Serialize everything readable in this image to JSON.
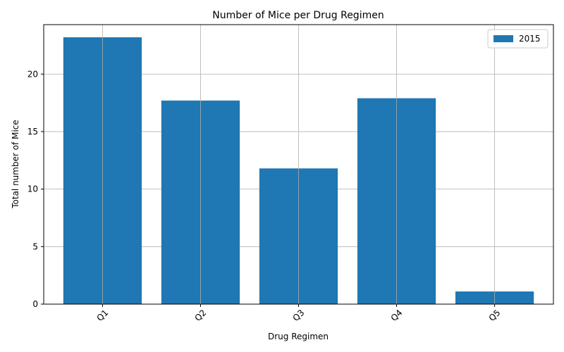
{
  "chart_data": {
    "type": "bar",
    "title": "Number of Mice per Drug Regimen",
    "xlabel": "Drug Regimen",
    "ylabel": "Total number of Mice",
    "categories": [
      "Q1",
      "Q2",
      "Q3",
      "Q4",
      "Q5"
    ],
    "series": [
      {
        "name": "2015",
        "values": [
          23.2,
          17.7,
          11.8,
          17.9,
          1.1
        ],
        "color": "#1f77b4"
      }
    ],
    "ylim": [
      0,
      24.3
    ],
    "yticks": [
      0,
      5,
      10,
      15,
      20
    ],
    "grid": true,
    "legend_position": "top-right",
    "xtick_rotation": -45
  }
}
